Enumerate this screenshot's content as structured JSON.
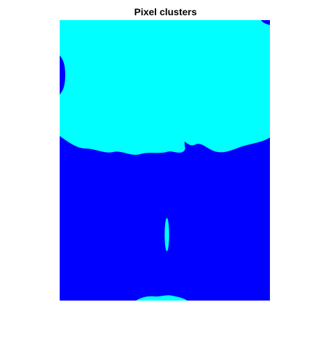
{
  "figure": {
    "title": "Pixel clusters"
  },
  "clusters": {
    "colors": {
      "cluster_1": "#00ffff",
      "cluster_2": "#0000ff"
    }
  }
}
